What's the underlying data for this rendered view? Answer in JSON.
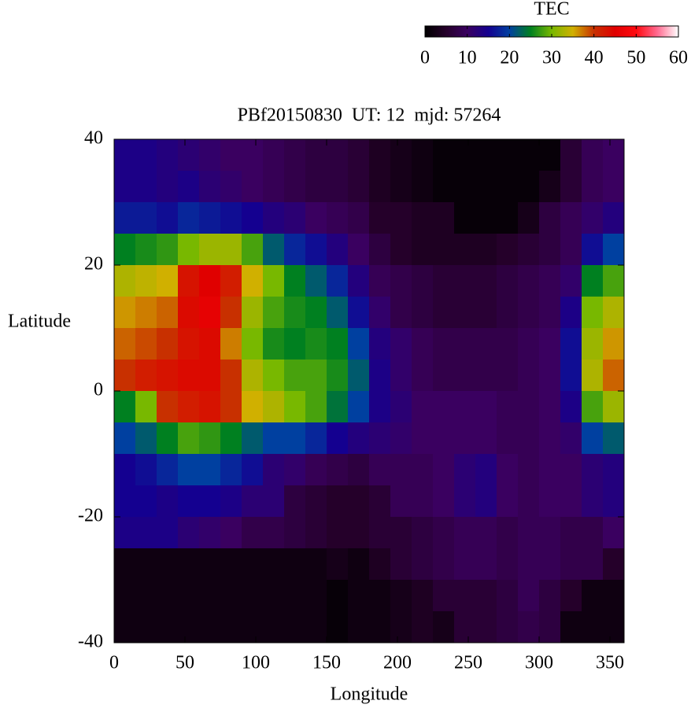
{
  "chart_data": {
    "type": "heatmap",
    "title": "PBf20150830  UT: 12  mjd: 57264",
    "xlabel": "Longitude",
    "ylabel": "Latitude",
    "colorbar_label": "TEC",
    "xlim": [
      0,
      360
    ],
    "xticks": [
      0,
      50,
      100,
      150,
      200,
      250,
      300,
      350
    ],
    "ylim": [
      -40,
      40
    ],
    "yticks": [
      -40,
      -20,
      0,
      20,
      40
    ],
    "clim": [
      0,
      60
    ],
    "cticks": [
      0,
      10,
      20,
      30,
      40,
      50,
      60
    ],
    "colors": [
      "#000000",
      "#25002a",
      "#3a0060",
      "#140090",
      "#0040a0",
      "#008020",
      "#78b800",
      "#d0b000",
      "#c83000",
      "#e00000",
      "#ff0a10",
      "#ff6a90",
      "#ffffff"
    ],
    "xbins": [
      0,
      15,
      30,
      45,
      60,
      75,
      90,
      105,
      120,
      135,
      150,
      165,
      180,
      195,
      210,
      225,
      240,
      255,
      270,
      285,
      300,
      315,
      330,
      345,
      360
    ],
    "ybins": [
      40,
      35,
      30,
      25,
      20,
      15,
      10,
      5,
      0,
      -5,
      -10,
      -15,
      -20,
      -25,
      -30,
      -35,
      -40
    ],
    "values": [
      [
        14,
        14,
        13,
        12,
        11,
        10,
        10,
        9,
        8,
        7,
        7,
        6,
        4,
        3,
        2,
        1,
        1,
        1,
        1,
        1,
        1,
        6,
        9,
        10
      ],
      [
        14,
        14,
        13,
        14,
        12,
        11,
        10,
        9,
        8,
        7,
        7,
        6,
        4,
        3,
        2,
        1,
        1,
        1,
        1,
        1,
        3,
        6,
        9,
        10
      ],
      [
        17,
        17,
        16,
        18,
        17,
        16,
        15,
        13,
        12,
        10,
        9,
        8,
        5,
        5,
        4,
        4,
        1,
        1,
        1,
        3,
        7,
        9,
        11,
        13
      ],
      [
        25,
        26,
        27,
        30,
        32,
        32,
        28,
        22,
        18,
        16,
        13,
        10,
        7,
        5,
        4,
        4,
        4,
        4,
        5,
        6,
        7,
        9,
        16,
        20
      ],
      [
        33,
        34,
        35,
        43,
        45,
        42,
        35,
        30,
        25,
        22,
        18,
        13,
        9,
        8,
        7,
        6,
        6,
        6,
        7,
        8,
        9,
        11,
        25,
        28
      ],
      [
        36,
        37,
        38,
        44,
        46,
        40,
        32,
        28,
        26,
        25,
        22,
        16,
        11,
        8,
        7,
        6,
        6,
        6,
        7,
        8,
        9,
        14,
        30,
        33
      ],
      [
        38,
        39,
        40,
        43,
        44,
        37,
        30,
        26,
        25,
        26,
        25,
        20,
        13,
        11,
        9,
        8,
        8,
        8,
        8,
        9,
        10,
        16,
        32,
        36
      ],
      [
        40,
        42,
        43,
        44,
        44,
        40,
        33,
        30,
        28,
        28,
        26,
        22,
        14,
        11,
        9,
        8,
        8,
        8,
        8,
        9,
        10,
        16,
        33,
        38
      ],
      [
        25,
        30,
        40,
        42,
        43,
        40,
        35,
        33,
        30,
        28,
        24,
        20,
        14,
        12,
        10,
        10,
        10,
        10,
        9,
        9,
        10,
        14,
        28,
        32
      ],
      [
        20,
        22,
        25,
        28,
        27,
        25,
        22,
        20,
        20,
        18,
        15,
        13,
        12,
        11,
        10,
        10,
        10,
        10,
        9,
        9,
        10,
        11,
        20,
        22
      ],
      [
        15,
        16,
        18,
        20,
        20,
        18,
        16,
        12,
        11,
        9,
        8,
        7,
        9,
        9,
        9,
        10,
        12,
        13,
        10,
        9,
        10,
        10,
        12,
        13
      ],
      [
        15,
        15,
        14,
        15,
        15,
        14,
        12,
        12,
        7,
        6,
        5,
        5,
        6,
        9,
        9,
        10,
        12,
        13,
        10,
        9,
        10,
        10,
        12,
        13
      ],
      [
        14,
        14,
        14,
        12,
        11,
        10,
        8,
        8,
        7,
        6,
        5,
        5,
        6,
        6,
        7,
        8,
        9,
        9,
        8,
        9,
        9,
        8,
        8,
        10
      ],
      [
        2,
        2,
        2,
        2,
        2,
        2,
        2,
        2,
        2,
        2,
        3,
        2,
        4,
        6,
        7,
        8,
        9,
        9,
        8,
        9,
        9,
        8,
        8,
        5
      ],
      [
        2,
        2,
        2,
        2,
        2,
        2,
        2,
        2,
        2,
        2,
        1,
        2,
        2,
        3,
        4,
        6,
        6,
        6,
        7,
        9,
        7,
        5,
        2,
        2
      ],
      [
        2,
        2,
        2,
        2,
        2,
        2,
        2,
        2,
        2,
        2,
        1,
        2,
        2,
        3,
        4,
        3,
        6,
        6,
        7,
        8,
        7,
        2,
        2,
        2
      ]
    ]
  }
}
